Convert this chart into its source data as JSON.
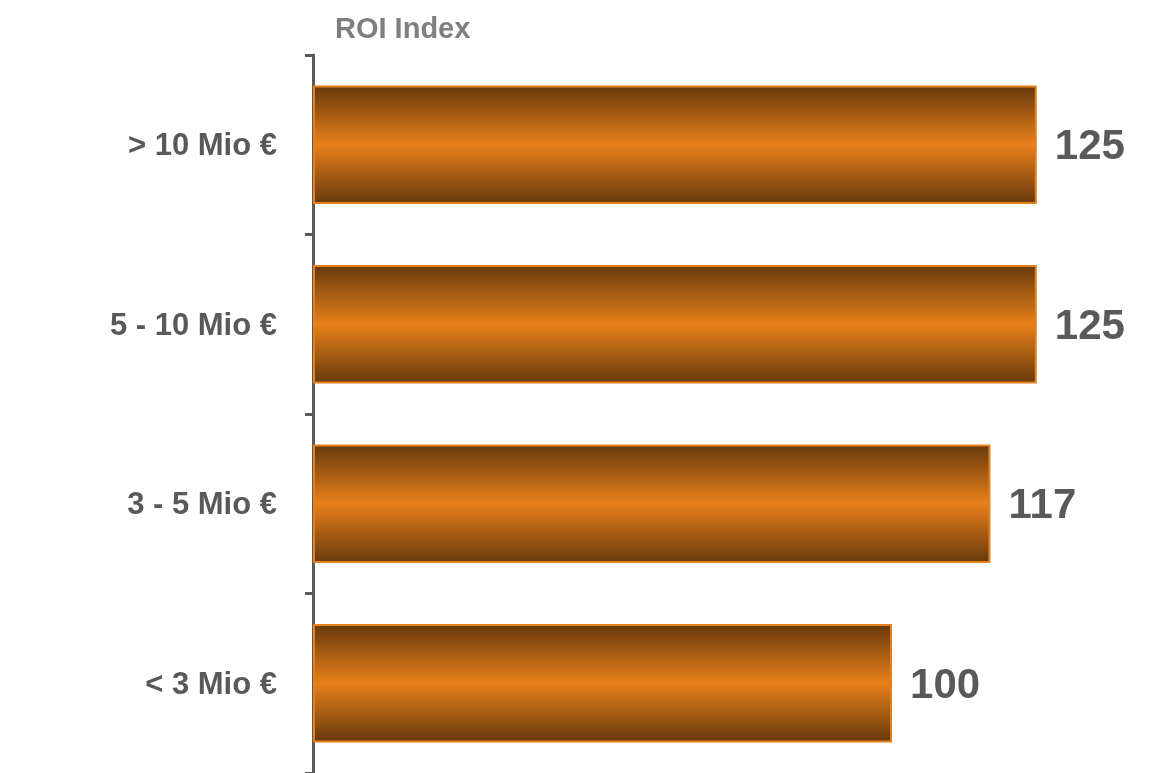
{
  "chart_data": {
    "type": "bar",
    "orientation": "horizontal",
    "title": "ROI Index",
    "categories": [
      "> 10 Mio €",
      "5 - 10 Mio €",
      "3 - 5 Mio €",
      "< 3 Mio €"
    ],
    "values": [
      125,
      125,
      117,
      100
    ],
    "color": "#e8801a",
    "data_labels": true
  }
}
